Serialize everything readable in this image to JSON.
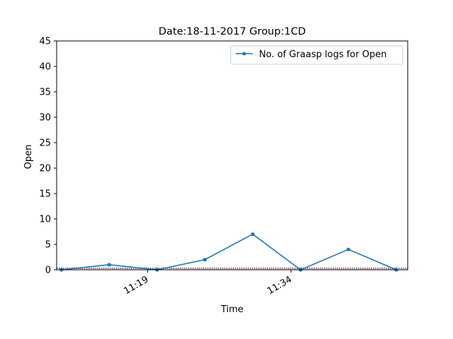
{
  "chart_data": {
    "type": "line",
    "title": "Date:18-11-2017  Group:1CD",
    "xlabel": "Time",
    "ylabel": "Open",
    "ylim": [
      0,
      45
    ],
    "yticks": [
      0,
      5,
      10,
      15,
      20,
      25,
      30,
      35,
      40,
      45
    ],
    "xticks": [
      "11:19",
      "11:34"
    ],
    "grid": false,
    "legend_position": "top-right",
    "series": [
      {
        "name": "No. of Graasp logs for Open",
        "color": "#1f77b4",
        "x": [
          "11:10",
          "11:15",
          "11:20",
          "11:25",
          "11:30",
          "11:35",
          "11:40",
          "11:45"
        ],
        "values": [
          0,
          1,
          0,
          2,
          7,
          0,
          4,
          0
        ]
      }
    ],
    "reference_lines": [
      {
        "y": 0.4,
        "color": "#1f1f8f",
        "style": "dotted"
      },
      {
        "y": 0.2,
        "color": "#8b0000",
        "style": "dotted"
      }
    ]
  }
}
